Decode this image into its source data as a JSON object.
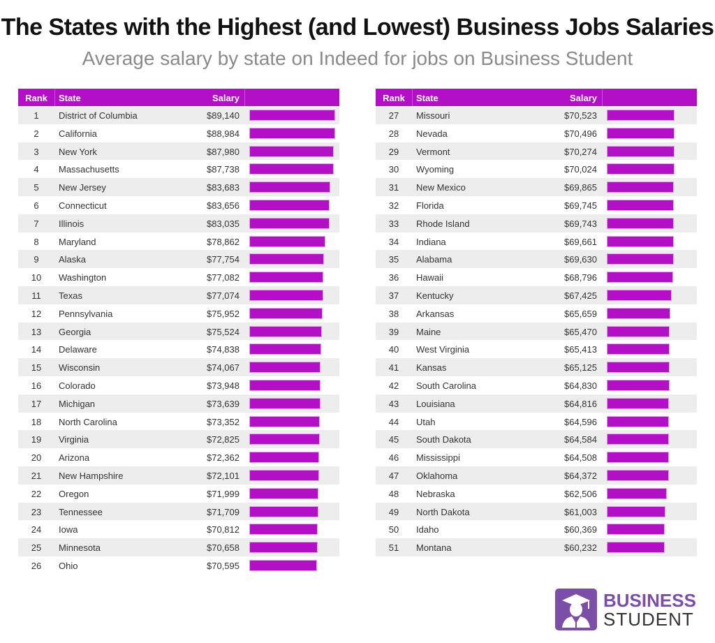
{
  "title": "The States with the Highest (and Lowest) Business Jobs Salaries",
  "subtitle": "Average salary by state on Indeed for jobs on Business Student",
  "logo": {
    "line1": "BUSINESS",
    "line2": "STUDENT",
    "icon": "graduate-icon",
    "color": "#7b4fa8"
  },
  "accent_color": "#b30fc7",
  "chart_data": {
    "type": "table",
    "columns": [
      "Rank",
      "State",
      "Salary"
    ],
    "rows": [
      [
        1,
        "District of Columbia",
        "$89,140",
        89140
      ],
      [
        2,
        "California",
        "$88,984",
        88984
      ],
      [
        3,
        "New York",
        "$87,980",
        87980
      ],
      [
        4,
        "Massachusetts",
        "$87,738",
        87738
      ],
      [
        5,
        "New Jersey",
        "$83,683",
        83683
      ],
      [
        6,
        "Connecticut",
        "$83,656",
        83656
      ],
      [
        7,
        "Illinois",
        "$83,035",
        83035
      ],
      [
        8,
        "Maryland",
        "$78,862",
        78862
      ],
      [
        9,
        "Alaska",
        "$77,754",
        77754
      ],
      [
        10,
        "Washington",
        "$77,082",
        77082
      ],
      [
        11,
        "Texas",
        "$77,074",
        77074
      ],
      [
        12,
        "Pennsylvania",
        "$75,952",
        75952
      ],
      [
        13,
        "Georgia",
        "$75,524",
        75524
      ],
      [
        14,
        "Delaware",
        "$74,838",
        74838
      ],
      [
        15,
        "Wisconsin",
        "$74,067",
        74067
      ],
      [
        16,
        "Colorado",
        "$73,948",
        73948
      ],
      [
        17,
        "Michigan",
        "$73,639",
        73639
      ],
      [
        18,
        "North Carolina",
        "$73,352",
        73352
      ],
      [
        19,
        "Virginia",
        "$72,825",
        72825
      ],
      [
        20,
        "Arizona",
        "$72,362",
        72362
      ],
      [
        21,
        "New Hampshire",
        "$72,101",
        72101
      ],
      [
        22,
        "Oregon",
        "$71,999",
        71999
      ],
      [
        23,
        "Tennessee",
        "$71,709",
        71709
      ],
      [
        24,
        "Iowa",
        "$70,812",
        70812
      ],
      [
        25,
        "Minnesota",
        "$70,658",
        70658
      ],
      [
        26,
        "Ohio",
        "$70,595",
        70595
      ],
      [
        27,
        "Missouri",
        "$70,523",
        70523
      ],
      [
        28,
        "Nevada",
        "$70,496",
        70496
      ],
      [
        29,
        "Vermont",
        "$70,274",
        70274
      ],
      [
        30,
        "Wyoming",
        "$70,024",
        70024
      ],
      [
        31,
        "New Mexico",
        "$69,865",
        69865
      ],
      [
        32,
        "Florida",
        "$69,745",
        69745
      ],
      [
        33,
        "Rhode Island",
        "$69,743",
        69743
      ],
      [
        34,
        "Indiana",
        "$69,661",
        69661
      ],
      [
        35,
        "Alabama",
        "$69,630",
        69630
      ],
      [
        36,
        "Hawaii",
        "$68,796",
        68796
      ],
      [
        37,
        "Kentucky",
        "$67,425",
        67425
      ],
      [
        38,
        "Arkansas",
        "$65,659",
        65659
      ],
      [
        39,
        "Maine",
        "$65,470",
        65470
      ],
      [
        40,
        "West Virginia",
        "$65,413",
        65413
      ],
      [
        41,
        "Kansas",
        "$65,125",
        65125
      ],
      [
        42,
        "South Carolina",
        "$64,830",
        64830
      ],
      [
        43,
        "Louisiana",
        "$64,816",
        64816
      ],
      [
        44,
        "Utah",
        "$64,596",
        64596
      ],
      [
        45,
        "South Dakota",
        "$64,584",
        64584
      ],
      [
        46,
        "Mississippi",
        "$64,508",
        64508
      ],
      [
        47,
        "Oklahoma",
        "$64,372",
        64372
      ],
      [
        48,
        "Nebraska",
        "$62,506",
        62506
      ],
      [
        49,
        "North Dakota",
        "$61,003",
        61003
      ],
      [
        50,
        "Idaho",
        "$60,369",
        60369
      ],
      [
        51,
        "Montana",
        "$60,232",
        60232
      ]
    ]
  }
}
